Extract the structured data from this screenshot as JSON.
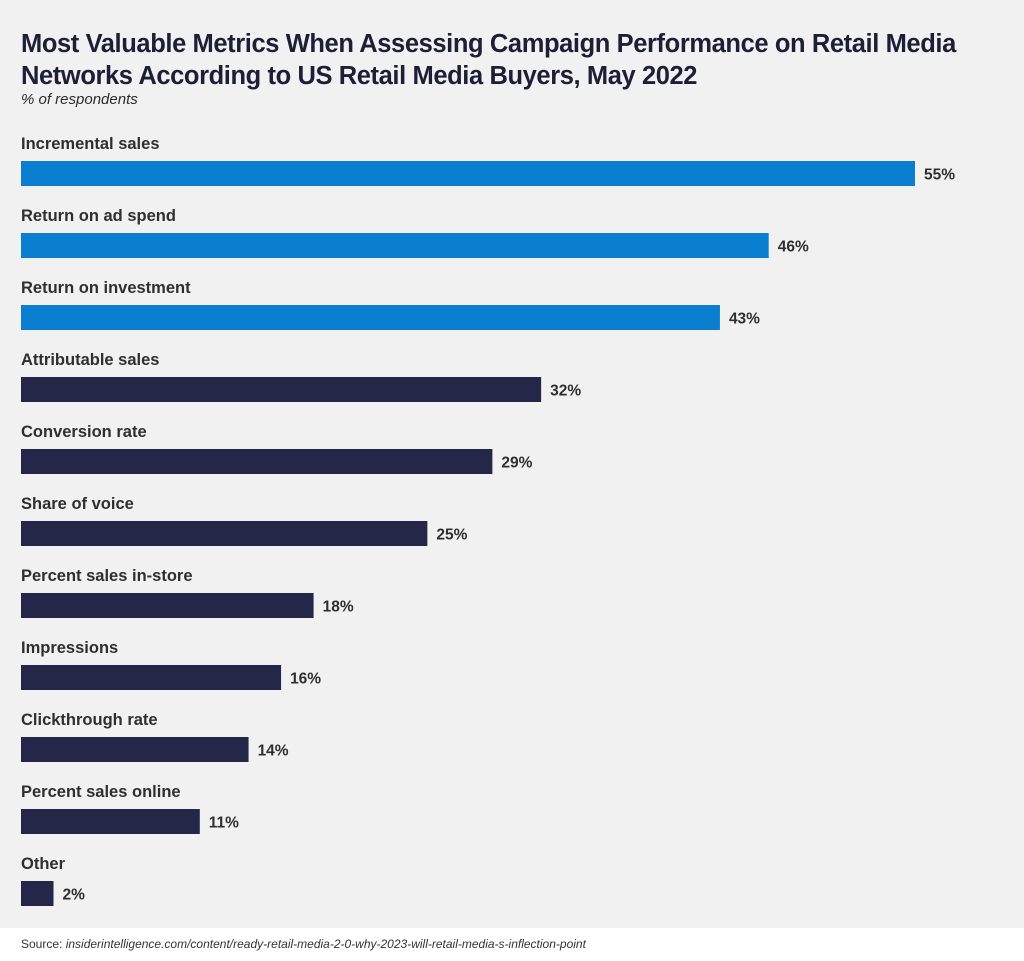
{
  "chart_data": {
    "type": "bar",
    "orientation": "horizontal",
    "title": "Most Valuable Metrics When Assessing Campaign Performance on Retail Media Networks According to US Retail Media Buyers, May 2022",
    "subtitle": "% of respondents",
    "xlabel": "",
    "ylabel": "",
    "xlim": [
      0,
      55
    ],
    "grid": false,
    "legend": "none",
    "value_suffix": "%",
    "categories": [
      "Incremental sales",
      "Return on ad spend",
      "Return on investment",
      "Attributable sales",
      "Conversion rate",
      "Share of voice",
      "Percent sales in-store",
      "Impressions",
      "Clickthrough rate",
      "Percent sales online",
      "Other"
    ],
    "values": [
      55,
      46,
      43,
      32,
      29,
      25,
      18,
      16,
      14,
      11,
      2
    ],
    "value_labels": [
      "55%",
      "46%",
      "43%",
      "32%",
      "29%",
      "25%",
      "18%",
      "16%",
      "14%",
      "11%",
      "2%"
    ],
    "highlight_count": 3,
    "colors": {
      "highlight": "#0a7fd0",
      "default": "#252748"
    }
  },
  "source": {
    "label": "Source:",
    "url": "insiderintelligence.com/content/ready-retail-media-2-0-why-2023-will-retail-media-s-inflection-point"
  }
}
